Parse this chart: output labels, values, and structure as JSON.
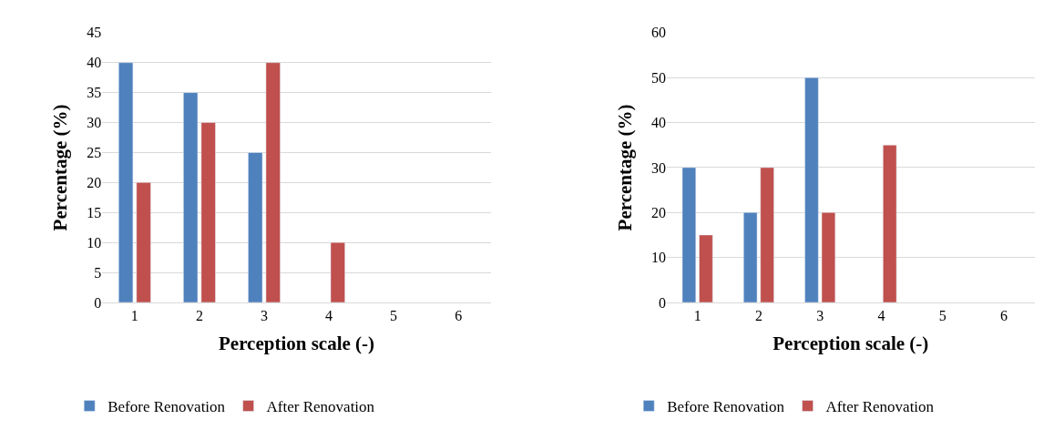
{
  "chart_data": [
    {
      "type": "bar",
      "xlabel": "Perception scale (-)",
      "ylabel": "Percentage (%)",
      "categories": [
        "1",
        "2",
        "3",
        "4",
        "5",
        "6"
      ],
      "series": [
        {
          "name": "Before Renovation",
          "color": "#4f81bd",
          "values": [
            40,
            35,
            25,
            null,
            null,
            null
          ]
        },
        {
          "name": "After Renovation",
          "color": "#c0504d",
          "values": [
            20,
            30,
            40,
            10,
            null,
            null
          ]
        }
      ],
      "ylim": [
        0,
        45
      ],
      "yticks": [
        0,
        5,
        10,
        15,
        20,
        25,
        30,
        35,
        40,
        45
      ],
      "grid": "y",
      "legend": "bottom"
    },
    {
      "type": "bar",
      "xlabel": "Perception scale (-)",
      "ylabel": "Percentage (%)",
      "categories": [
        "1",
        "2",
        "3",
        "4",
        "5",
        "6"
      ],
      "series": [
        {
          "name": "Before Renovation",
          "color": "#4f81bd",
          "values": [
            30,
            20,
            50,
            null,
            null,
            null
          ]
        },
        {
          "name": "After Renovation",
          "color": "#c0504d",
          "values": [
            15,
            30,
            20,
            35,
            null,
            null
          ]
        }
      ],
      "ylim": [
        0,
        60
      ],
      "yticks": [
        0,
        10,
        20,
        30,
        40,
        50,
        60
      ],
      "grid": "y",
      "legend": "bottom"
    }
  ]
}
